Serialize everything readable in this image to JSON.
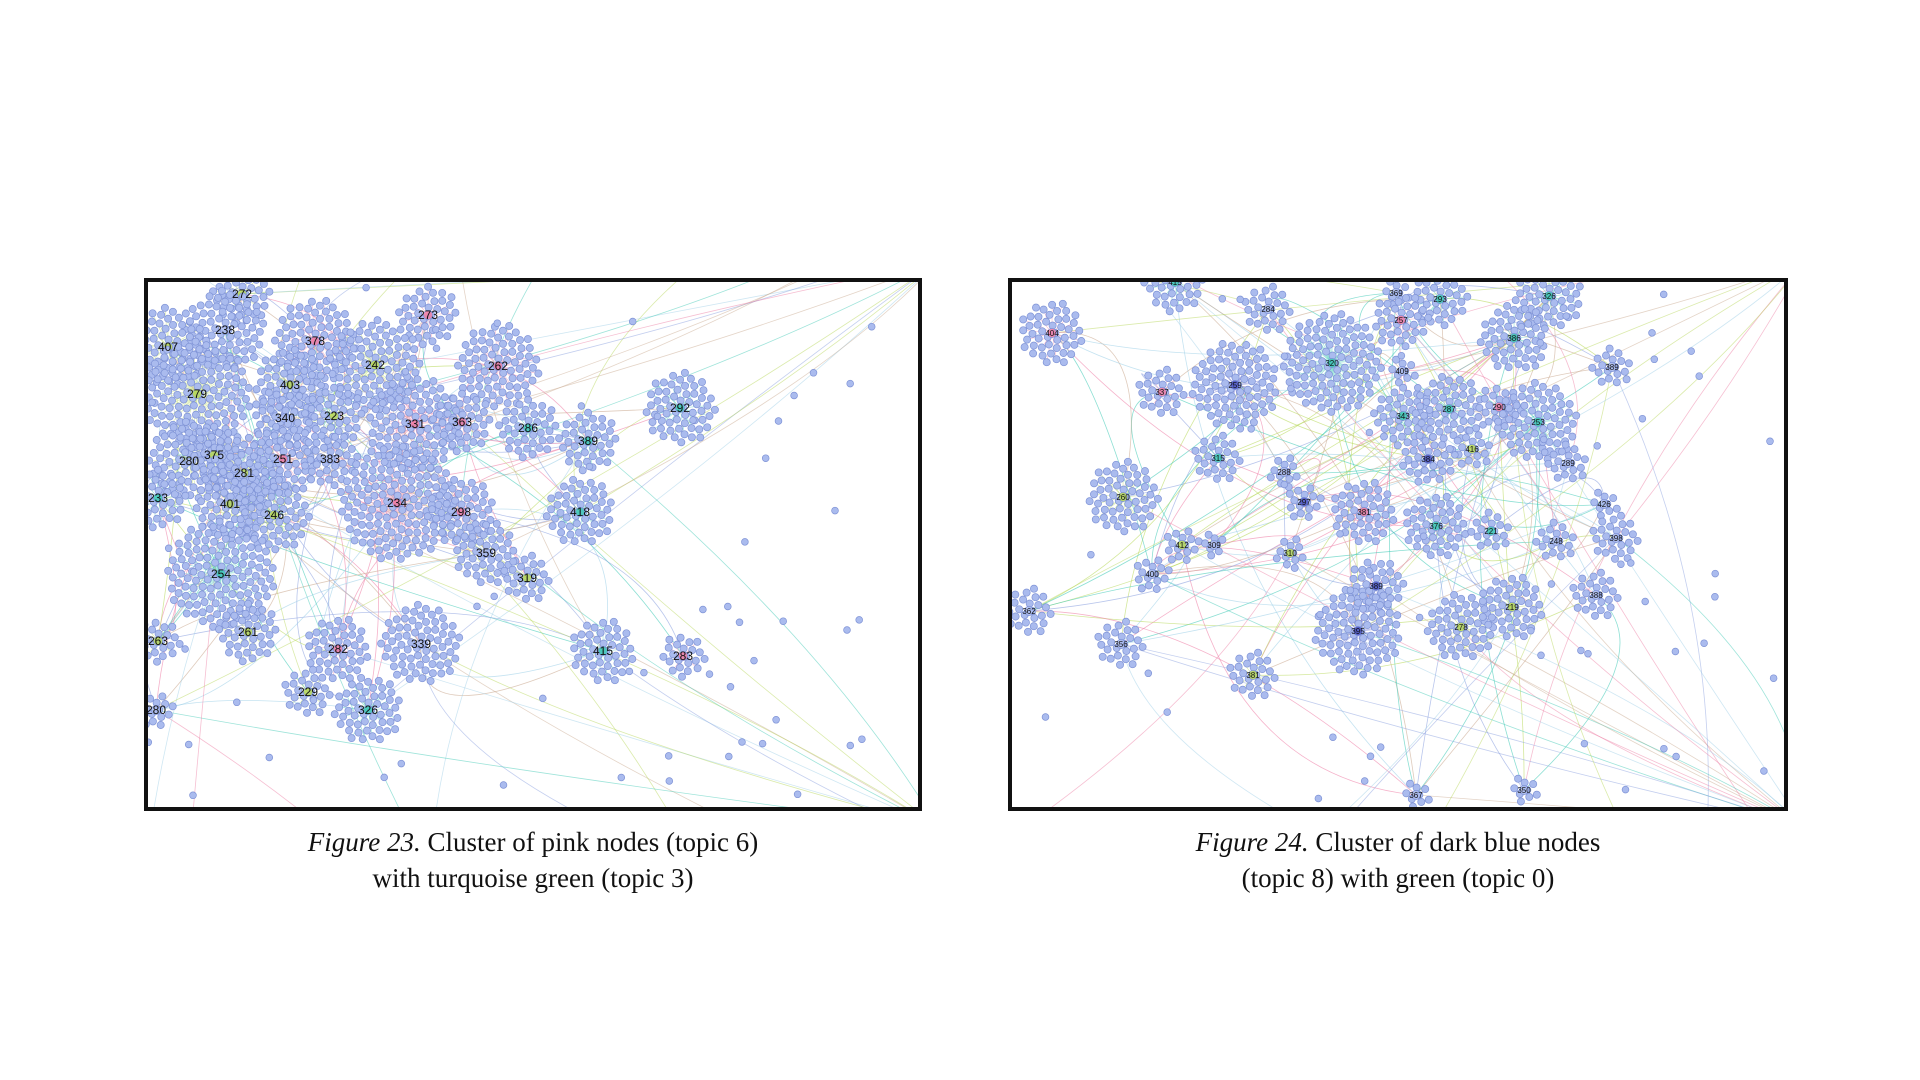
{
  "colors": {
    "node_fill": "#aabbee",
    "node_stroke": "#7f93d6",
    "pink_topic": "#ee7fa6",
    "turquoise_topic": "#3fc9b6",
    "green_topic": "#b7d85a",
    "dark_blue_topic": "#4e57c6",
    "frame_border": "#111111"
  },
  "figure23": {
    "caption_number": "Figure 23.",
    "caption_line1": " Cluster of pink nodes (topic 6)",
    "caption_line2": "with turquoise green (topic 3)",
    "hub_labels": [
      "272",
      "238",
      "407",
      "378",
      "273",
      "242",
      "262",
      "279",
      "403",
      "340",
      "223",
      "331",
      "363",
      "286",
      "292",
      "389",
      "280",
      "375",
      "281",
      "251",
      "383",
      "233",
      "401",
      "246",
      "234",
      "298",
      "418",
      "359",
      "319",
      "254",
      "261",
      "263",
      "282",
      "339",
      "229",
      "326",
      "415",
      "283",
      "280"
    ]
  },
  "figure24": {
    "caption_number": "Figure 24.",
    "caption_line1": " Cluster of dark blue nodes",
    "caption_line2": "(topic 8) with green (topic 0)",
    "hub_labels": [
      "415",
      "284",
      "369",
      "293",
      "326",
      "404",
      "257",
      "386",
      "320",
      "409",
      "259",
      "337",
      "389",
      "343",
      "287",
      "290",
      "253",
      "315",
      "416",
      "288",
      "384",
      "289",
      "260",
      "297",
      "381",
      "376",
      "426",
      "221",
      "248",
      "398",
      "412",
      "309",
      "310",
      "389",
      "400",
      "219",
      "388",
      "362",
      "278",
      "356",
      "395",
      "381",
      "367",
      "350"
    ]
  }
}
